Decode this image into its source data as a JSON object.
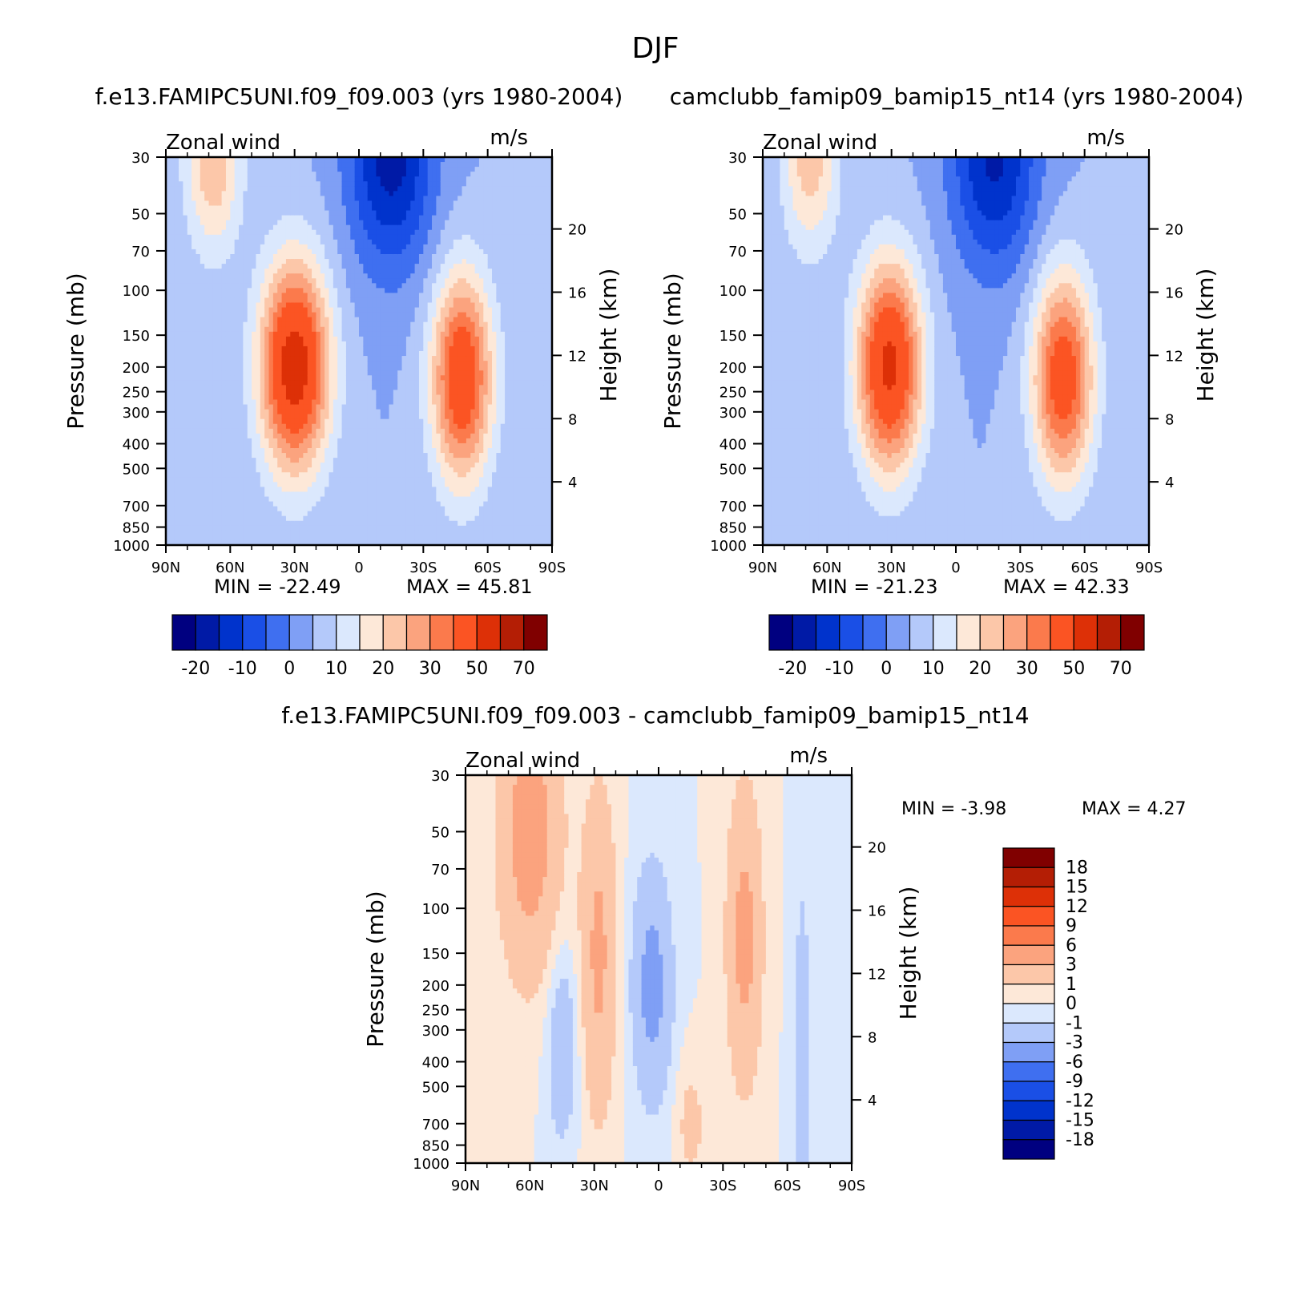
{
  "figure": {
    "title": "DJF"
  },
  "chart_data": [
    {
      "type": "heatmap",
      "title": "f.e13.FAMIPC5UNI.f09_f09.003 (yrs 1980-2004)",
      "left_label": "Zonal wind",
      "right_label": "m/s",
      "xlabel": "",
      "ylabel": "Pressure (mb)",
      "y2label": "Height (km)",
      "x_ticks": [
        "90N",
        "60N",
        "30N",
        "0",
        "30S",
        "60S",
        "90S"
      ],
      "x_values": [
        90,
        60,
        30,
        0,
        -30,
        -60,
        -90
      ],
      "y_ticks": [
        30,
        50,
        70,
        100,
        150,
        200,
        250,
        300,
        400,
        500,
        700,
        850,
        1000
      ],
      "y_scale": "log",
      "ylim": [
        1000,
        30
      ],
      "y2_ticks": [
        20,
        16,
        12,
        8,
        4
      ],
      "min_label": "MIN = -22.49",
      "max_label": "MAX = 45.81",
      "min": -22.49,
      "max": 45.81,
      "colorbar_orientation": "horizontal",
      "colorbar_labels": [
        "-20",
        "-10",
        "0",
        "10",
        "20",
        "30",
        "50",
        "70"
      ],
      "levels": [
        -25,
        -20,
        -15,
        -10,
        -5,
        0,
        5,
        10,
        15,
        20,
        25,
        30,
        40,
        50,
        60,
        70
      ],
      "jets": [
        {
          "lat": 30,
          "p": 200,
          "peak": 45.81,
          "lat_width": 16,
          "z_width": 6.5
        },
        {
          "lat": -48,
          "p": 220,
          "peak": 38,
          "lat_width": 14,
          "z_width": 6.5
        },
        {
          "lat": 68,
          "p": 30,
          "peak": 20,
          "lat_width": 13,
          "z_width": 6
        },
        {
          "lat": -15,
          "p": 30,
          "peak": -22.49,
          "lat_width": 20,
          "z_width": 7
        }
      ]
    },
    {
      "type": "heatmap",
      "title": "camclubb_famip09_bamip15_nt14 (yrs 1980-2004)",
      "left_label": "Zonal wind",
      "right_label": "m/s",
      "xlabel": "",
      "ylabel": "Pressure (mb)",
      "y2label": "Height (km)",
      "x_ticks": [
        "90N",
        "60N",
        "30N",
        "0",
        "30S",
        "60S",
        "90S"
      ],
      "x_values": [
        90,
        60,
        30,
        0,
        -30,
        -60,
        -90
      ],
      "y_ticks": [
        30,
        50,
        70,
        100,
        150,
        200,
        250,
        300,
        400,
        500,
        700,
        850,
        1000
      ],
      "y_scale": "log",
      "ylim": [
        1000,
        30
      ],
      "y2_ticks": [
        20,
        16,
        12,
        8,
        4
      ],
      "min_label": "MIN = -21.23",
      "max_label": "MAX = 42.33",
      "min": -21.23,
      "max": 42.33,
      "colorbar_orientation": "horizontal",
      "colorbar_labels": [
        "-20",
        "-10",
        "0",
        "10",
        "20",
        "30",
        "50",
        "70"
      ],
      "levels": [
        -25,
        -20,
        -15,
        -10,
        -5,
        0,
        5,
        10,
        15,
        20,
        25,
        30,
        40,
        50,
        60,
        70
      ],
      "jets": [
        {
          "lat": 31,
          "p": 200,
          "peak": 42.33,
          "lat_width": 15,
          "z_width": 6.5
        },
        {
          "lat": -50,
          "p": 220,
          "peak": 36,
          "lat_width": 14,
          "z_width": 6.5
        },
        {
          "lat": 68,
          "p": 30,
          "peak": 18,
          "lat_width": 13,
          "z_width": 6
        },
        {
          "lat": -18,
          "p": 30,
          "peak": -21.23,
          "lat_width": 20,
          "z_width": 7
        }
      ]
    },
    {
      "type": "heatmap",
      "title": "f.e13.FAMIPC5UNI.f09_f09.003 - camclubb_famip09_bamip15_nt14",
      "left_label": "Zonal wind",
      "right_label": "m/s",
      "xlabel": "",
      "ylabel": "Pressure (mb)",
      "y2label": "Height (km)",
      "x_ticks": [
        "90N",
        "60N",
        "30N",
        "0",
        "30S",
        "60S",
        "90S"
      ],
      "x_values": [
        90,
        60,
        30,
        0,
        -30,
        -60,
        -90
      ],
      "y_ticks": [
        30,
        50,
        70,
        100,
        150,
        200,
        250,
        300,
        400,
        500,
        700,
        850,
        1000
      ],
      "y_scale": "log",
      "ylim": [
        1000,
        30
      ],
      "y2_ticks": [
        20,
        16,
        12,
        8,
        4
      ],
      "min_label": "MIN = -3.98",
      "max_label": "MAX = 4.27",
      "min": -3.98,
      "max": 4.27,
      "colorbar_orientation": "vertical",
      "colorbar_labels": [
        "18",
        "15",
        "12",
        "9",
        "6",
        "3",
        "1",
        "0",
        "-1",
        "-3",
        "-6",
        "-9",
        "-12",
        "-15",
        "-18"
      ],
      "levels": [
        -18,
        -15,
        -12,
        -9,
        -6,
        -3,
        -1,
        0,
        1,
        3,
        6,
        9,
        12,
        15,
        18
      ],
      "jets": [
        {
          "lat": 60,
          "p": 50,
          "peak": 4.27,
          "lat_width": 14,
          "z_width": 9
        },
        {
          "lat": 28,
          "p": 150,
          "peak": 3.5,
          "lat_width": 8,
          "z_width": 10
        },
        {
          "lat": -40,
          "p": 130,
          "peak": 3.8,
          "lat_width": 8,
          "z_width": 9
        },
        {
          "lat": -15,
          "p": 700,
          "peak": 1.5,
          "lat_width": 7,
          "z_width": 4
        },
        {
          "lat": 3,
          "p": 200,
          "peak": -3.98,
          "lat_width": 9,
          "z_width": 7
        },
        {
          "lat": 45,
          "p": 350,
          "peak": -2.5,
          "lat_width": 7,
          "z_width": 6
        },
        {
          "lat": -67,
          "p": 400,
          "peak": -1.5,
          "lat_width": 5,
          "z_width": 16
        }
      ]
    }
  ],
  "palette": [
    "#000080",
    "#001aa6",
    "#0033cc",
    "#1a4fe6",
    "#3f6ff0",
    "#7f9ff5",
    "#b4c9fa",
    "#dbe8fd",
    "#fde8d8",
    "#fcc7a9",
    "#fba37e",
    "#fb7a4c",
    "#fb5423",
    "#dd3007",
    "#b41e05",
    "#800000"
  ]
}
